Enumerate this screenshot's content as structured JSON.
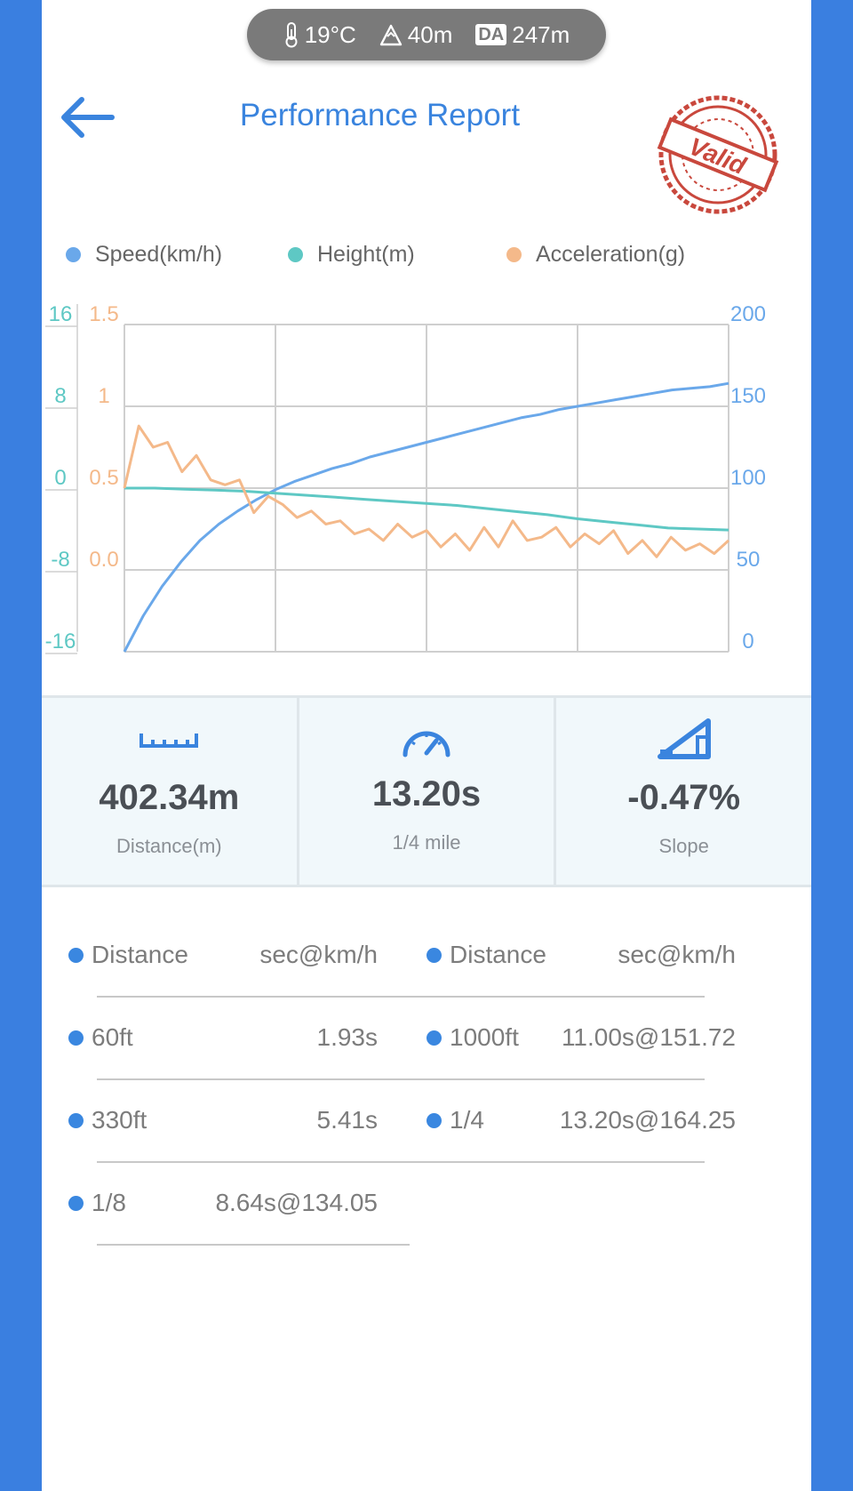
{
  "env": {
    "temperature": "19°C",
    "altitude": "40m",
    "da_label": "DA",
    "density_altitude": "247m",
    "icons": [
      "thermometer-icon",
      "mountain-icon"
    ]
  },
  "header": {
    "title": "Performance Report",
    "stamp_text": "Valid",
    "back_icon": "arrow-left-icon"
  },
  "legend": [
    {
      "label": "Speed(km/h)",
      "color": "#6aa8ea"
    },
    {
      "label": "Height(m)",
      "color": "#5ec8c4"
    },
    {
      "label": "Acceleration(g)",
      "color": "#f4b98a"
    }
  ],
  "chart_data": {
    "type": "line",
    "x_ticks": 4,
    "axes": {
      "height_left": {
        "ticks": [
          "16",
          "8",
          "0",
          "-8",
          "-16"
        ],
        "range": [
          -16,
          16
        ],
        "color": "#5ec8c4"
      },
      "accel_left": {
        "ticks": [
          "1.5",
          "1",
          "0.5",
          "0.0"
        ],
        "range": [
          -0.5,
          1.5
        ],
        "color": "#f4b98a"
      },
      "speed_right": {
        "ticks": [
          "200",
          "150",
          "100",
          "50",
          "0"
        ],
        "range": [
          0,
          200
        ],
        "color": "#6aa8ea"
      }
    },
    "series": [
      {
        "name": "Speed(km/h)",
        "axis": "speed_right",
        "color": "#6aa8ea",
        "values": [
          0,
          22,
          40,
          55,
          68,
          78,
          86,
          93,
          99,
          104,
          108,
          112,
          115,
          119,
          122,
          125,
          128,
          131,
          134,
          137,
          140,
          143,
          145,
          148,
          150,
          152,
          154,
          156,
          158,
          160,
          161,
          162,
          164
        ]
      },
      {
        "name": "Height(m)",
        "axis": "height_left",
        "color": "#5ec8c4",
        "values": [
          0,
          0,
          -0.1,
          -0.2,
          -0.3,
          -0.5,
          -0.7,
          -0.9,
          -1.1,
          -1.3,
          -1.5,
          -1.7,
          -2.0,
          -2.3,
          -2.6,
          -3.0,
          -3.3,
          -3.6,
          -3.9,
          -4.0,
          -4.1
        ]
      },
      {
        "name": "Acceleration(g)",
        "axis": "accel_left",
        "color": "#f4b98a",
        "values": [
          0.5,
          0.88,
          0.75,
          0.78,
          0.6,
          0.7,
          0.55,
          0.52,
          0.55,
          0.35,
          0.45,
          0.4,
          0.32,
          0.36,
          0.28,
          0.3,
          0.22,
          0.25,
          0.18,
          0.28,
          0.2,
          0.24,
          0.14,
          0.22,
          0.12,
          0.26,
          0.14,
          0.3,
          0.18,
          0.2,
          0.26,
          0.14,
          0.22,
          0.16,
          0.24,
          0.1,
          0.18,
          0.08,
          0.2,
          0.12,
          0.16,
          0.1,
          0.18
        ]
      }
    ]
  },
  "stats": [
    {
      "value": "402.34m",
      "label": "Distance(m)",
      "icon": "ruler-icon"
    },
    {
      "value": "13.20s",
      "label": "1/4 mile",
      "icon": "speedometer-icon"
    },
    {
      "value": "-0.47%",
      "label": "Slope",
      "icon": "slope-icon"
    }
  ],
  "splits": {
    "header": {
      "name": "Distance",
      "value": "sec@km/h"
    },
    "left": [
      {
        "name": "60ft",
        "value": "1.93s"
      },
      {
        "name": "330ft",
        "value": "5.41s"
      },
      {
        "name": "1/8",
        "value": "8.64s@134.05"
      }
    ],
    "right": [
      {
        "name": "1000ft",
        "value": "11.00s@151.72"
      },
      {
        "name": "1/4",
        "value": "13.20s@164.25"
      }
    ]
  }
}
